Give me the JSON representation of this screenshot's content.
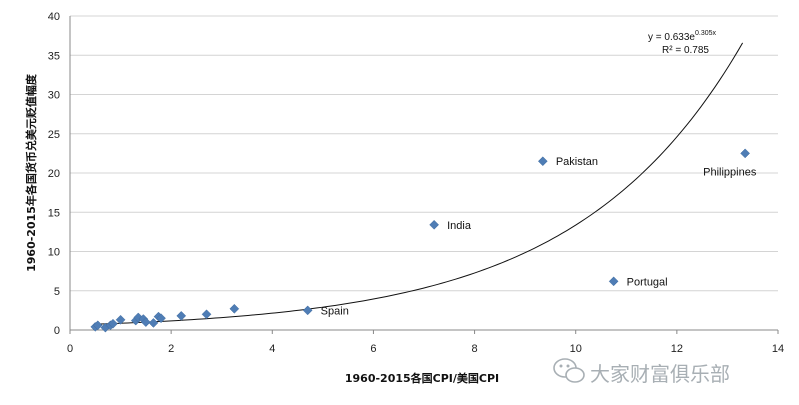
{
  "chart_data": {
    "type": "scatter",
    "xlabel": "1960-2015各国CPI/美国CPI",
    "ylabel": "1960-2015年各国货币兑美元贬值幅度",
    "xlim": [
      0,
      14
    ],
    "ylim": [
      0,
      40
    ],
    "x_ticks": [
      "0",
      "2",
      "4",
      "6",
      "8",
      "10",
      "12",
      "14"
    ],
    "y_ticks": [
      "0",
      "5",
      "10",
      "15",
      "20",
      "25",
      "30",
      "35",
      "40"
    ],
    "grid": "horizontal",
    "points": [
      {
        "x": 0.5,
        "y": 0.4
      },
      {
        "x": 0.55,
        "y": 0.6
      },
      {
        "x": 0.7,
        "y": 0.3
      },
      {
        "x": 0.8,
        "y": 0.6
      },
      {
        "x": 0.85,
        "y": 0.8
      },
      {
        "x": 1.0,
        "y": 1.3
      },
      {
        "x": 1.3,
        "y": 1.2
      },
      {
        "x": 1.35,
        "y": 1.6
      },
      {
        "x": 1.45,
        "y": 1.4
      },
      {
        "x": 1.5,
        "y": 1.0
      },
      {
        "x": 1.65,
        "y": 0.9
      },
      {
        "x": 1.75,
        "y": 1.7
      },
      {
        "x": 1.8,
        "y": 1.5
      },
      {
        "x": 2.2,
        "y": 1.8
      },
      {
        "x": 2.7,
        "y": 2.0
      },
      {
        "x": 3.25,
        "y": 2.7
      },
      {
        "x": 4.7,
        "y": 2.5,
        "label": "Spain"
      },
      {
        "x": 7.2,
        "y": 13.4,
        "label": "India"
      },
      {
        "x": 9.35,
        "y": 21.5,
        "label": "Pakistan"
      },
      {
        "x": 10.75,
        "y": 6.2,
        "label": "Portugal"
      },
      {
        "x": 13.35,
        "y": 22.5,
        "label": "Philippines"
      }
    ],
    "trendline": {
      "type": "exponential",
      "a": 0.633,
      "b": 0.305,
      "x_range": [
        0.5,
        13.3
      ]
    },
    "annotations": {
      "equation_prefix": "y = 0.633e",
      "equation_exponent": "0.305x",
      "r_squared": "R² = 0.785"
    },
    "marker_color": "#4f7db5"
  },
  "watermark": {
    "text": "大家财富俱乐部",
    "icon": "wechat-icon"
  }
}
